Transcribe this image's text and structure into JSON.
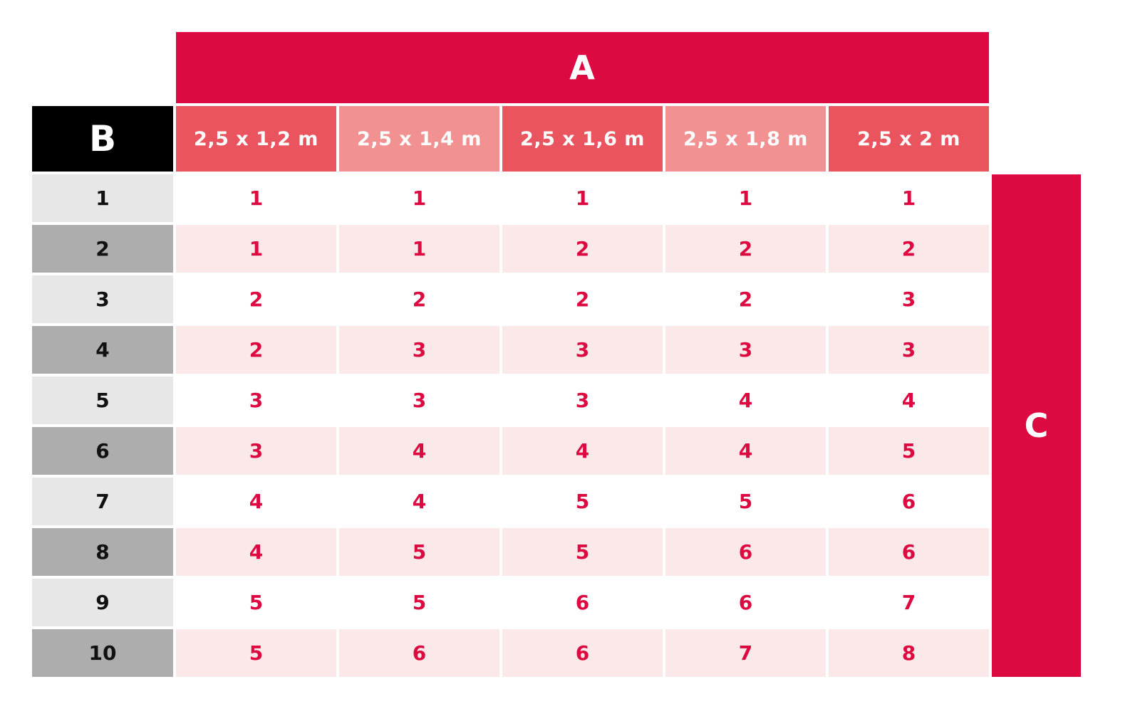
{
  "chart_data": {
    "type": "table",
    "top_header": "A",
    "corner_header": "B",
    "right_header": "C",
    "columns": [
      "2,5 x 1,2 m",
      "2,5 x 1,4 m",
      "2,5 x 1,6 m",
      "2,5 x 1,8 m",
      "2,5 x 2 m"
    ],
    "row_labels": [
      "1",
      "2",
      "3",
      "4",
      "5",
      "6",
      "7",
      "8",
      "9",
      "10"
    ],
    "values": [
      [
        1,
        1,
        1,
        1,
        1
      ],
      [
        1,
        1,
        2,
        2,
        2
      ],
      [
        2,
        2,
        2,
        2,
        3
      ],
      [
        2,
        3,
        3,
        3,
        3
      ],
      [
        3,
        3,
        3,
        4,
        4
      ],
      [
        3,
        4,
        4,
        4,
        5
      ],
      [
        4,
        4,
        5,
        5,
        6
      ],
      [
        4,
        5,
        5,
        6,
        6
      ],
      [
        5,
        5,
        6,
        6,
        7
      ],
      [
        5,
        6,
        6,
        7,
        8
      ]
    ]
  },
  "colors": {
    "primary_red": "#DC0A40",
    "header_red_dark": "#EA545E",
    "header_red_light": "#F29191",
    "row_gray_light": "#E7E7E7",
    "row_gray_dark": "#ADADAD",
    "data_row_pink": "#FBE9E9",
    "black": "#000000"
  }
}
